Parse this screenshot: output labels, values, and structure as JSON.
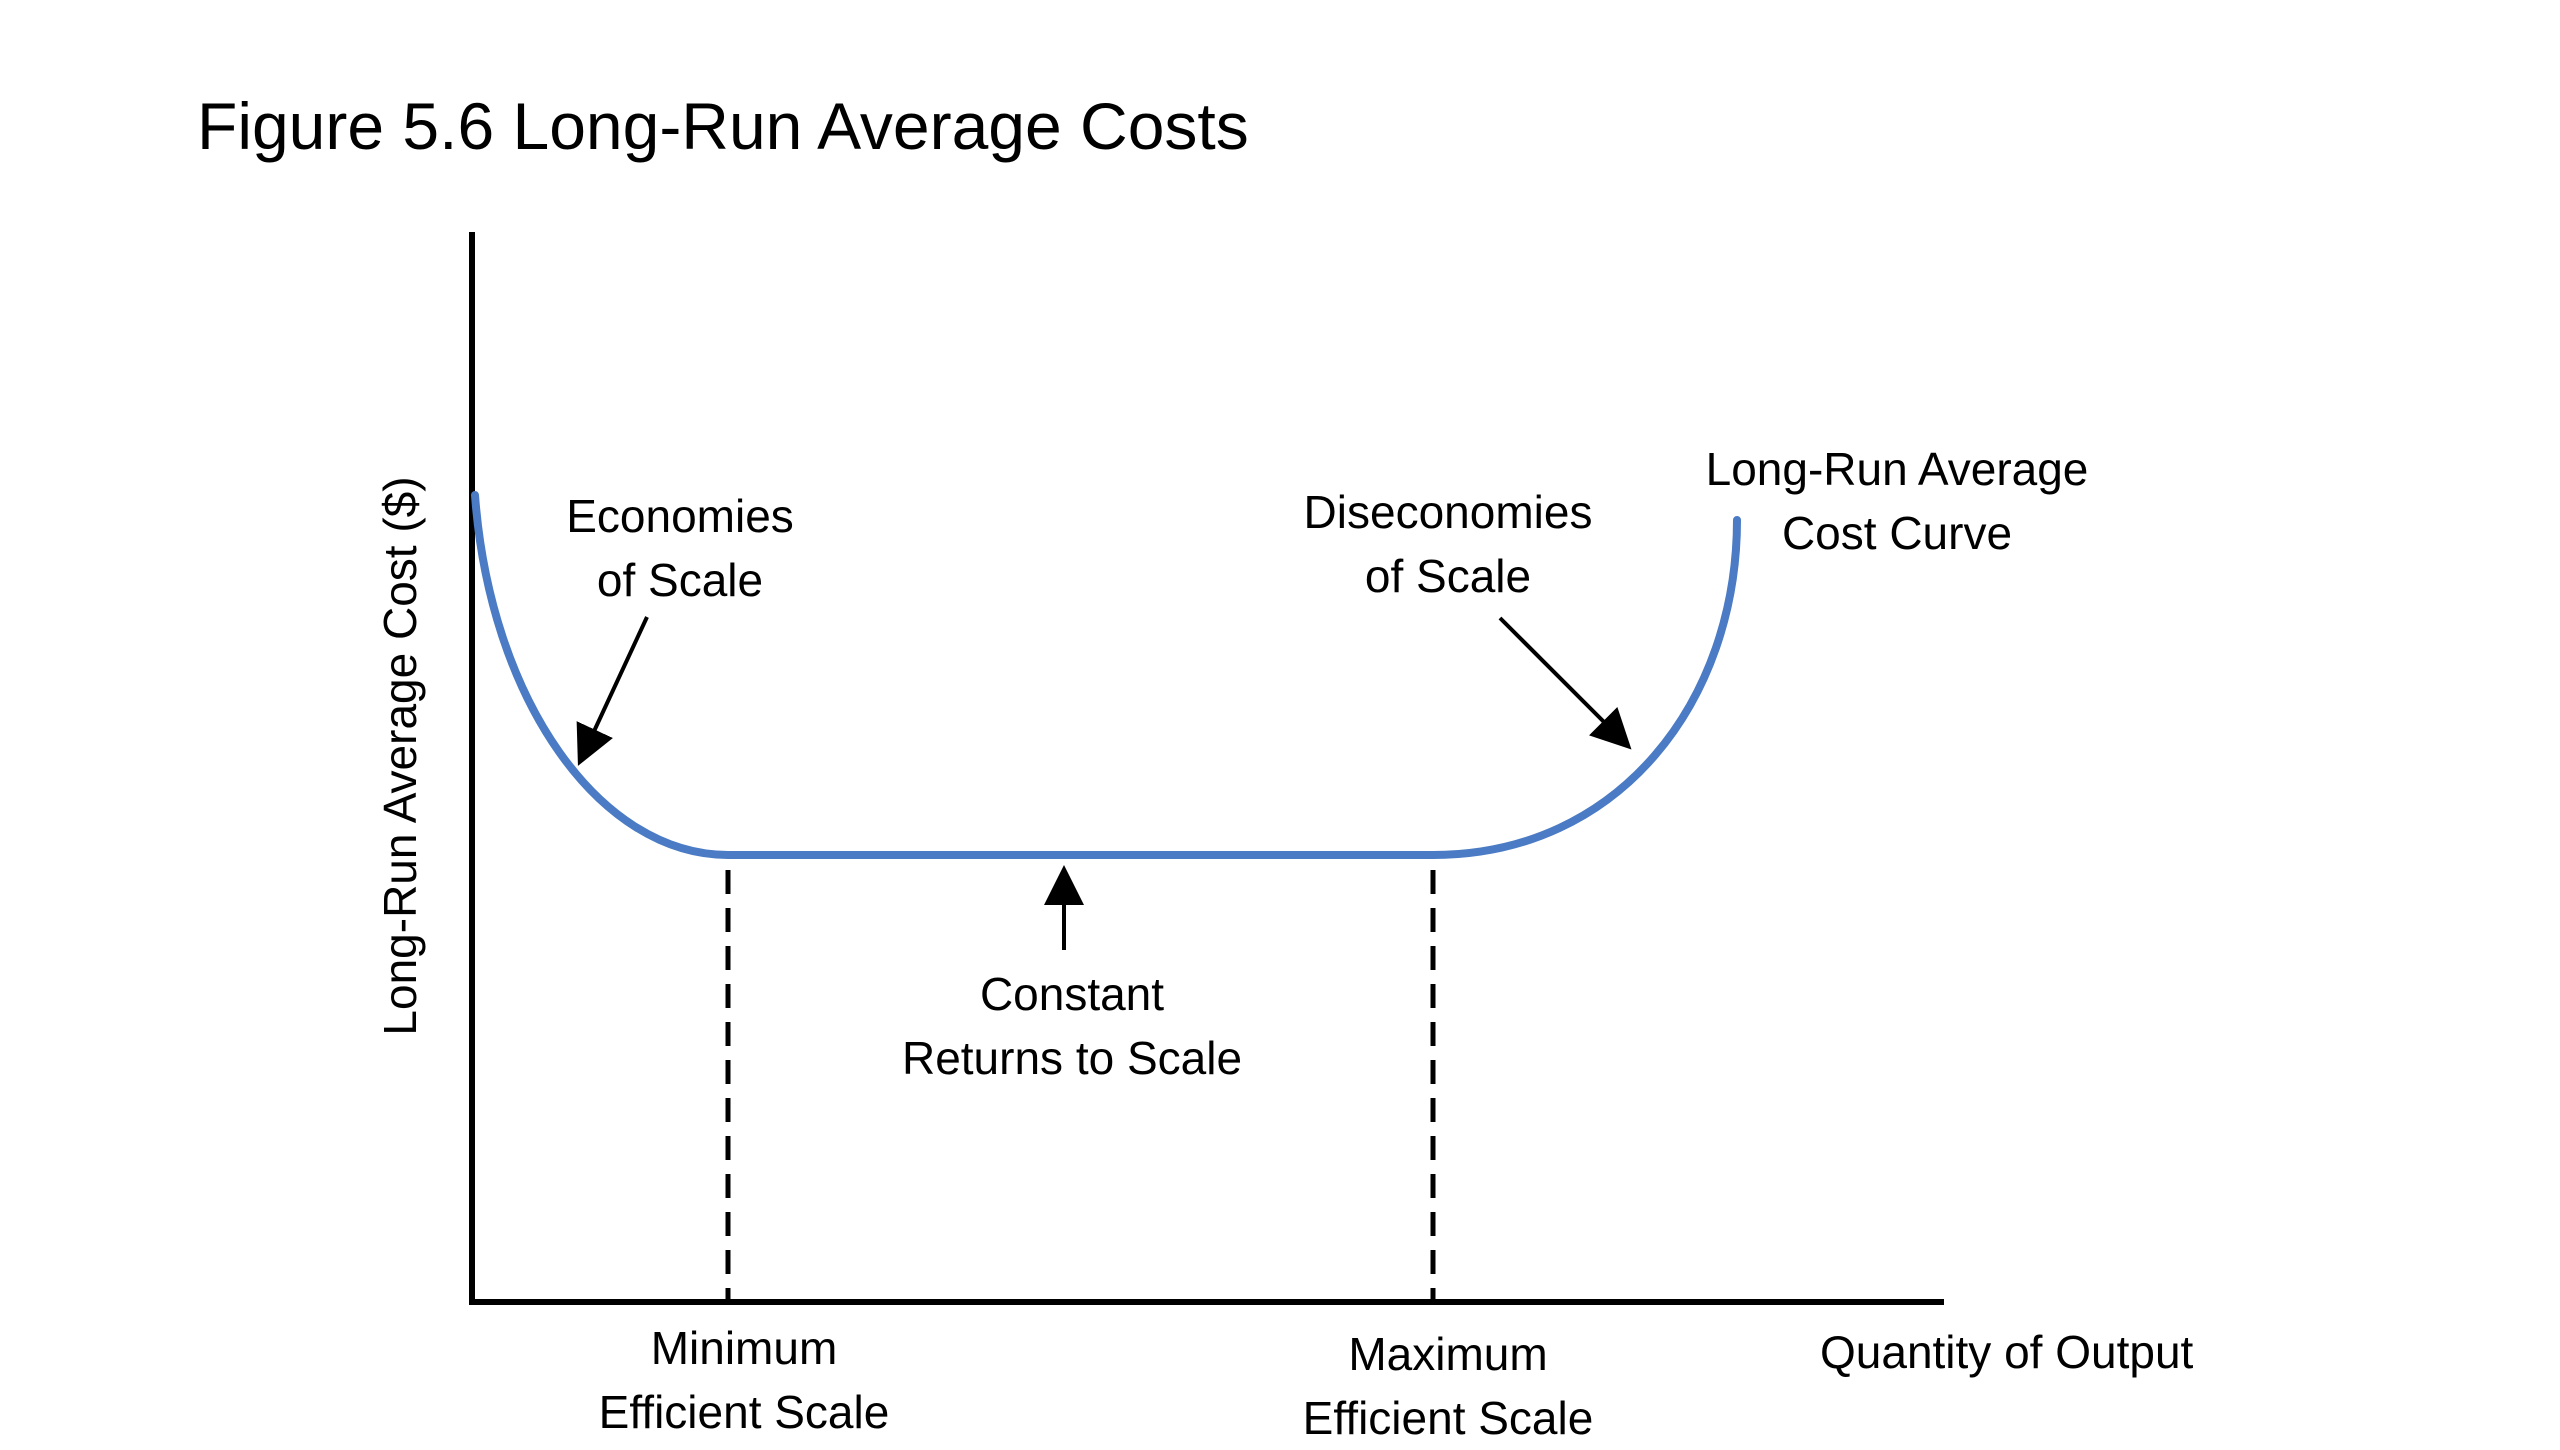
{
  "title": "Figure 5.6  Long-Run Average Costs",
  "axes": {
    "y_label": "Long-Run Average Cost ($)",
    "x_label": "Quantity of Output"
  },
  "curve": {
    "name_line1": "Long-Run Average",
    "name_line2": "Cost Curve",
    "color": "#4A7BC4"
  },
  "annotations": {
    "economies_line1": "Economies",
    "economies_line2": "of Scale",
    "diseconomies_line1": "Diseconomies",
    "diseconomies_line2": "of Scale",
    "constant_line1": "Constant",
    "constant_line2": "Returns to Scale",
    "min_scale_line1": "Minimum",
    "min_scale_line2": "Efficient Scale",
    "max_scale_line1": "Maximum",
    "max_scale_line2": "Efficient Scale"
  },
  "colors": {
    "axis": "#000000",
    "text": "#000000",
    "background": "#ffffff"
  }
}
